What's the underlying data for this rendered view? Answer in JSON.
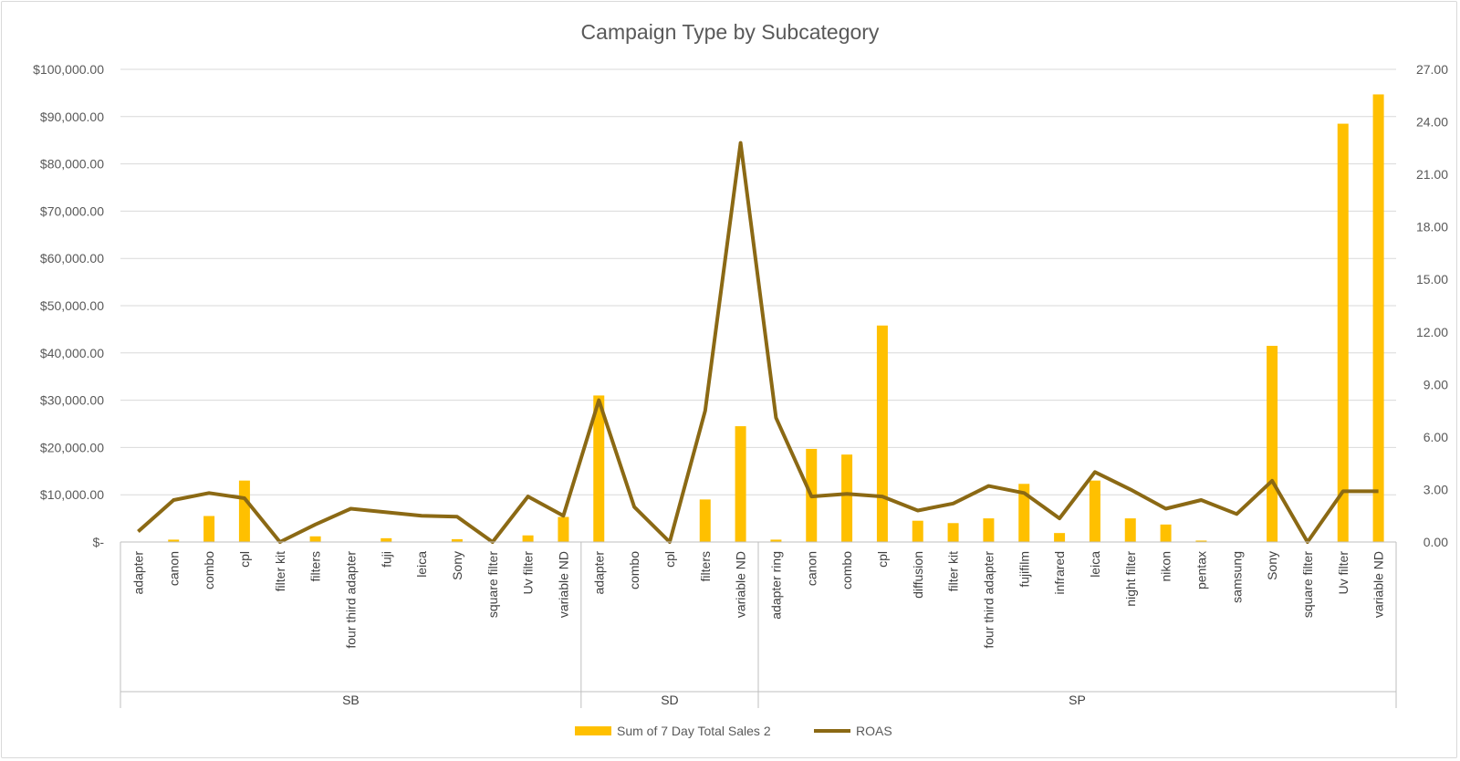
{
  "chart_data": {
    "type": "bar",
    "title": "Campaign Type by Subcategory",
    "groups": [
      {
        "name": "SB",
        "categories": [
          "adapter",
          "canon",
          "combo",
          "cpl",
          "filter kit",
          "filters",
          "four third adapter",
          "fuji",
          "leica",
          "Sony",
          "square filter",
          "Uv filter",
          "variable ND"
        ]
      },
      {
        "name": "SD",
        "categories": [
          "adapter",
          "combo",
          "cpl",
          "filters",
          "variable ND"
        ]
      },
      {
        "name": "SP",
        "categories": [
          "adapter ring",
          "canon",
          "combo",
          "cpl",
          "diffusion",
          "filter kit",
          "four third adapter",
          "fujifilm",
          "infrared",
          "leica",
          "night filter",
          "nikon",
          "pentax",
          "samsung",
          "Sony",
          "square filter",
          "Uv filter",
          "variable ND"
        ]
      }
    ],
    "series": [
      {
        "name": "Sum of 7 Day Total Sales 2",
        "type": "bar",
        "axis": "left",
        "color": "#FFC000",
        "values": [
          0,
          500,
          5500,
          13000,
          0,
          1200,
          0,
          800,
          0,
          600,
          0,
          1400,
          5300,
          31000,
          0,
          0,
          9000,
          24500,
          500,
          19700,
          18500,
          45800,
          4500,
          4000,
          5000,
          12300,
          1900,
          13000,
          5000,
          3700,
          300,
          0,
          41500,
          0,
          88500,
          94700
        ]
      },
      {
        "name": "ROAS",
        "type": "line",
        "axis": "right",
        "color": "#8B6914",
        "values": [
          0.6,
          2.4,
          2.8,
          2.5,
          0.0,
          1.0,
          1.9,
          1.7,
          1.5,
          1.45,
          0.0,
          2.6,
          1.5,
          8.1,
          2.0,
          0.0,
          7.5,
          22.8,
          7.1,
          2.6,
          2.75,
          2.6,
          1.8,
          2.2,
          3.2,
          2.8,
          1.35,
          4.0,
          3.0,
          1.9,
          2.4,
          1.6,
          3.5,
          0.0,
          2.9,
          2.9
        ]
      }
    ],
    "y_left": {
      "min": 0,
      "max": 100000,
      "ticks": [
        0,
        10000,
        20000,
        30000,
        40000,
        50000,
        60000,
        70000,
        80000,
        90000,
        100000
      ],
      "tick_labels": [
        "$-",
        "$10,000.00",
        "$20,000.00",
        "$30,000.00",
        "$40,000.00",
        "$50,000.00",
        "$60,000.00",
        "$70,000.00",
        "$80,000.00",
        "$90,000.00",
        "$100,000.00"
      ]
    },
    "y_right": {
      "min": 0,
      "max": 27,
      "ticks": [
        0,
        3,
        6,
        9,
        12,
        15,
        18,
        21,
        24,
        27
      ],
      "tick_labels": [
        "0.00",
        "3.00",
        "6.00",
        "9.00",
        "12.00",
        "15.00",
        "18.00",
        "21.00",
        "24.00",
        "27.00"
      ]
    },
    "grid": true,
    "legend_position": "bottom"
  }
}
